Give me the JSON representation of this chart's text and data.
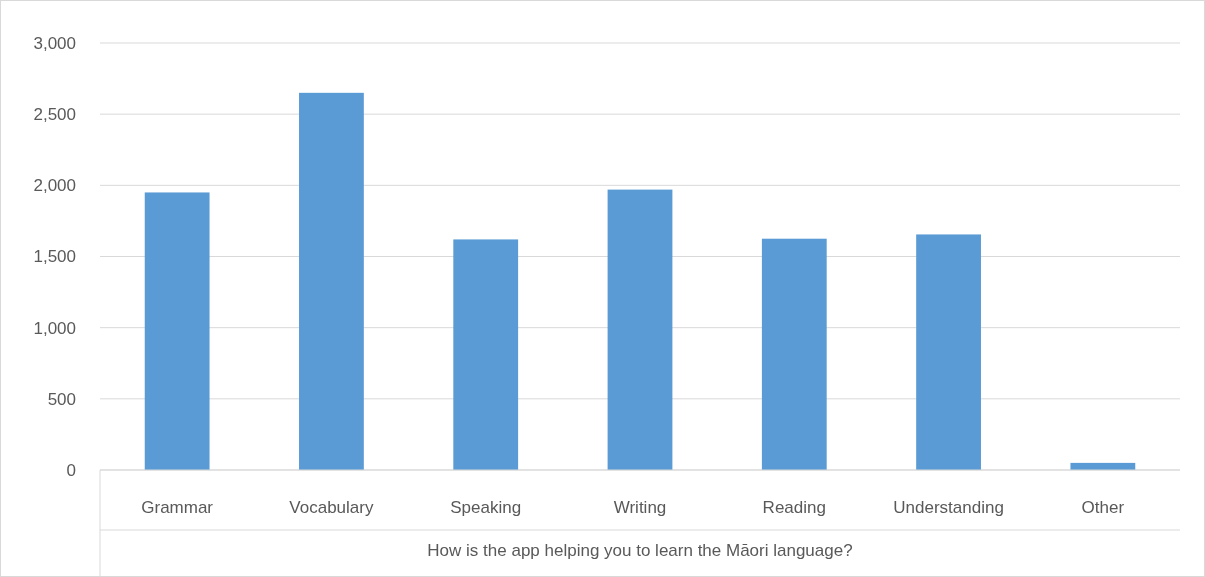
{
  "chart_data": {
    "type": "bar",
    "xlabel": "How is the app helping you to learn the Māori language?",
    "categories": [
      "Grammar",
      "Vocabulary",
      "Speaking",
      "Writing",
      "Reading",
      "Understanding",
      "Other"
    ],
    "values": [
      1950,
      2650,
      1620,
      1970,
      1625,
      1655,
      50
    ],
    "color": "#5b9bd5",
    "ylim": [
      0,
      3000
    ],
    "yticks": [
      0,
      500,
      {
        "value": 1000,
        "label": "1,000"
      },
      {
        "value": 1500,
        "label": "1,500"
      },
      {
        "value": 2000,
        "label": "2,000"
      },
      {
        "value": 2500,
        "label": "2,500"
      },
      {
        "value": 3000,
        "label": "3,000"
      }
    ],
    "grid": "y"
  }
}
